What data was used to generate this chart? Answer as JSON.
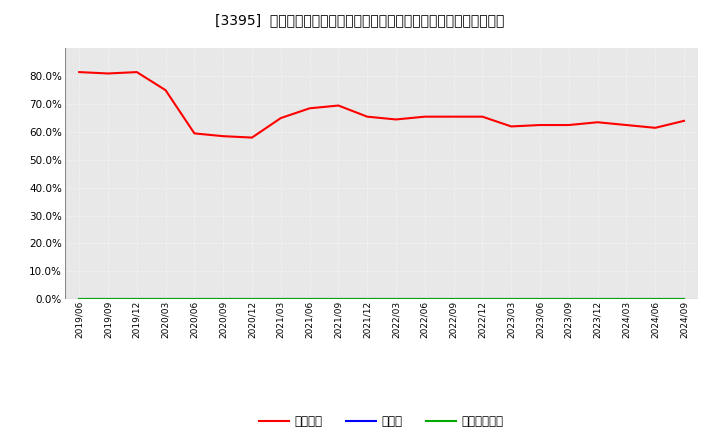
{
  "title": "[3395]  自己資本、のれん、繰延税金資産の総資産に対する比率の推移",
  "background_color": "#ffffff",
  "plot_bg_color": "#e8e8e8",
  "grid_color": "#ffffff",
  "x_labels": [
    "2019/06",
    "2019/09",
    "2019/12",
    "2020/03",
    "2020/06",
    "2020/09",
    "2020/12",
    "2021/03",
    "2021/06",
    "2021/09",
    "2021/12",
    "2022/03",
    "2022/06",
    "2022/09",
    "2022/12",
    "2023/03",
    "2023/06",
    "2023/09",
    "2023/12",
    "2024/03",
    "2024/06",
    "2024/09"
  ],
  "equity_ratio": [
    81.5,
    81.0,
    81.5,
    75.0,
    59.5,
    58.5,
    58.0,
    65.0,
    68.5,
    69.5,
    65.5,
    64.5,
    65.5,
    65.5,
    65.5,
    62.0,
    62.5,
    62.5,
    63.5,
    62.5,
    61.5,
    64.0
  ],
  "noren_ratio": [
    0.0,
    0.0,
    0.0,
    0.0,
    0.0,
    0.0,
    0.0,
    0.0,
    0.0,
    0.0,
    0.0,
    0.0,
    0.0,
    0.0,
    0.0,
    0.0,
    0.0,
    0.0,
    0.0,
    0.0,
    0.0,
    0.0
  ],
  "deferred_tax_ratio": [
    0.0,
    0.0,
    0.0,
    0.0,
    0.0,
    0.0,
    0.0,
    0.0,
    0.0,
    0.0,
    0.0,
    0.0,
    0.0,
    0.0,
    0.0,
    0.0,
    0.0,
    0.0,
    0.0,
    0.0,
    0.0,
    0.0
  ],
  "ylim": [
    0,
    90
  ],
  "yticks": [
    0,
    10,
    20,
    30,
    40,
    50,
    60,
    70,
    80
  ],
  "legend_labels": [
    "自己資本",
    "のれん",
    "繰延税金資産"
  ],
  "legend_colors": [
    "#ff0000",
    "#0000ff",
    "#00aa00"
  ],
  "line_width": 1.5
}
